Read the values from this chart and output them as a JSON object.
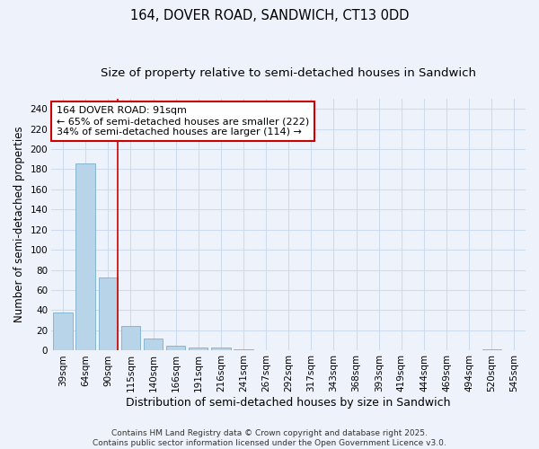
{
  "title": "164, DOVER ROAD, SANDWICH, CT13 0DD",
  "subtitle": "Size of property relative to semi-detached houses in Sandwich",
  "xlabel": "Distribution of semi-detached houses by size in Sandwich",
  "ylabel": "Number of semi-detached properties",
  "categories": [
    "39sqm",
    "64sqm",
    "90sqm",
    "115sqm",
    "140sqm",
    "166sqm",
    "191sqm",
    "216sqm",
    "241sqm",
    "267sqm",
    "292sqm",
    "317sqm",
    "343sqm",
    "368sqm",
    "393sqm",
    "419sqm",
    "444sqm",
    "469sqm",
    "494sqm",
    "520sqm",
    "545sqm"
  ],
  "values": [
    38,
    186,
    72,
    24,
    12,
    5,
    3,
    3,
    1,
    0,
    0,
    0,
    0,
    0,
    0,
    0,
    0,
    0,
    0,
    1,
    0
  ],
  "bar_color": "#b8d4e8",
  "bar_edge_color": "#7aafcf",
  "red_line_index": 2,
  "annotation_text": "164 DOVER ROAD: 91sqm\n← 65% of semi-detached houses are smaller (222)\n34% of semi-detached houses are larger (114) →",
  "annotation_box_color": "#ffffff",
  "annotation_box_edge_color": "#cc0000",
  "grid_color": "#ccdcee",
  "background_color": "#eef3fb",
  "ylim": [
    0,
    250
  ],
  "yticks": [
    0,
    20,
    40,
    60,
    80,
    100,
    120,
    140,
    160,
    180,
    200,
    220,
    240
  ],
  "footer_line1": "Contains HM Land Registry data © Crown copyright and database right 2025.",
  "footer_line2": "Contains public sector information licensed under the Open Government Licence v3.0.",
  "title_fontsize": 10.5,
  "subtitle_fontsize": 9.5,
  "xlabel_fontsize": 9,
  "ylabel_fontsize": 8.5,
  "tick_fontsize": 7.5,
  "annotation_fontsize": 8,
  "footer_fontsize": 6.5
}
